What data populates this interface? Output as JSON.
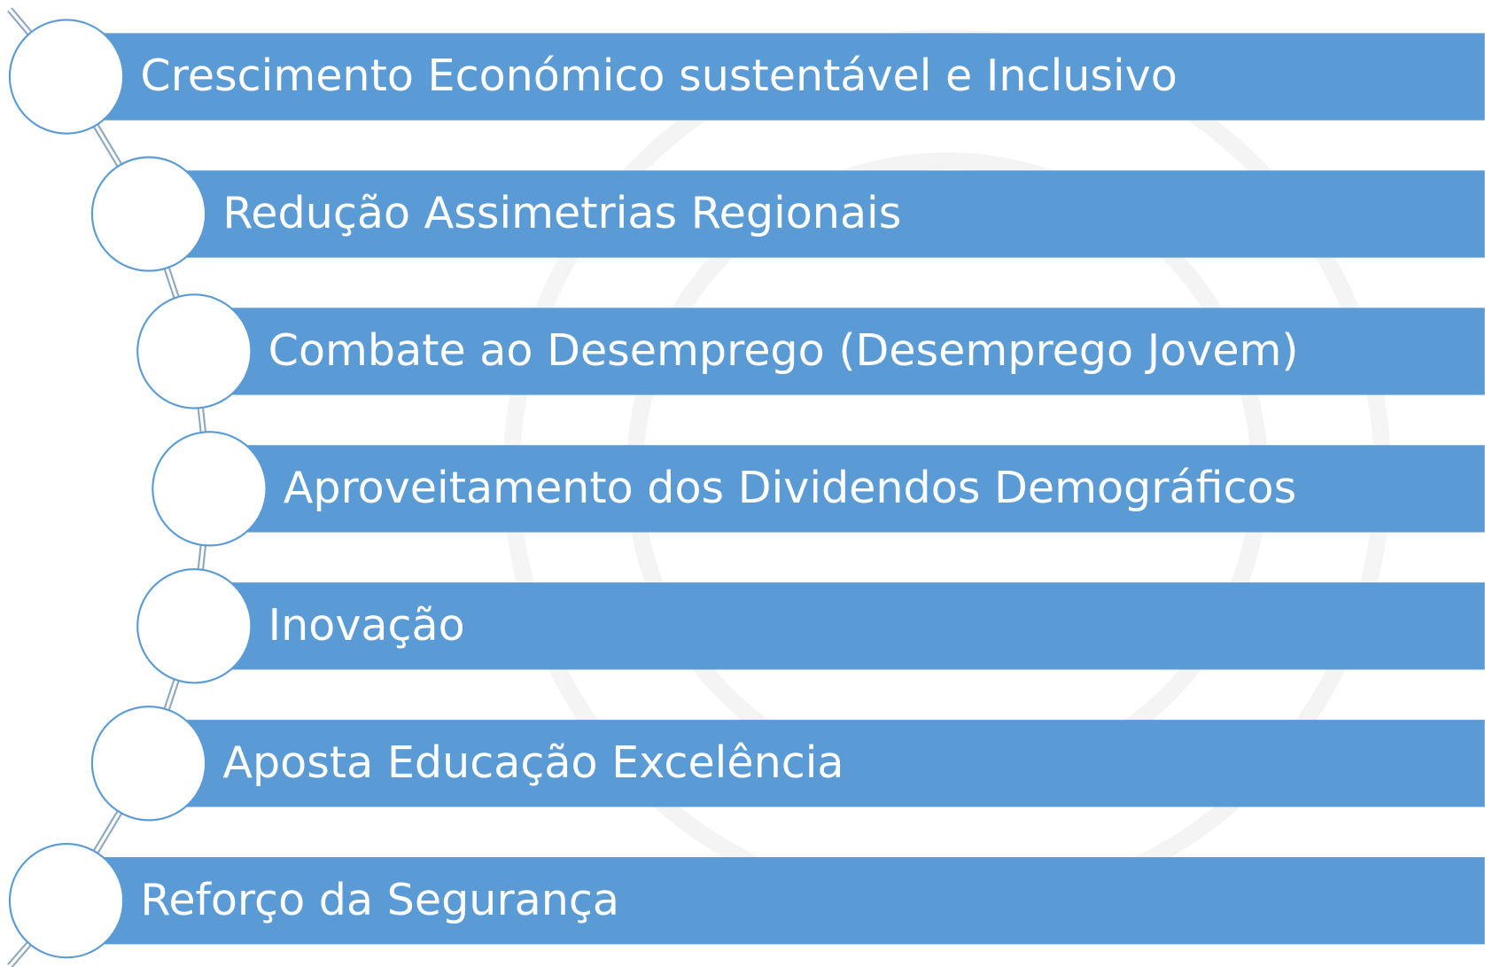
{
  "items": [
    {
      "label": "Crescimento Económico sustentável e Inclusivo"
    },
    {
      "label": "Redução Assimetrias Regionais"
    },
    {
      "label": "Combate ao Desemprego (Desemprego Jovem)"
    },
    {
      "label": "Aproveitamento dos Dividendos Demográficos"
    },
    {
      "label": "Inovação"
    },
    {
      "label": "Aposta Educação Excelência"
    },
    {
      "label": "Reforço da Segurança"
    }
  ]
}
